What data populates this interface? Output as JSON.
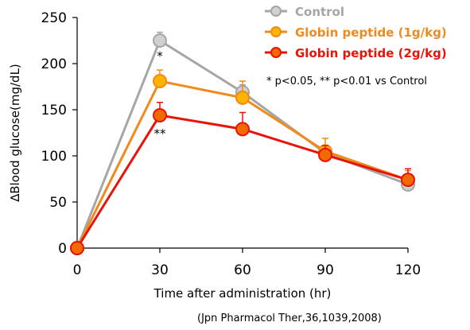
{
  "chart_data": {
    "type": "line",
    "xlabel": "Time after administration (hr)",
    "ylabel": "∆Blood glucose(mg/dL)",
    "x": [
      0,
      30,
      60,
      90,
      120
    ],
    "xticks": [
      "0",
      "30",
      "60",
      "90",
      "120"
    ],
    "yticks": [
      "0",
      "50",
      "100",
      "150",
      "200",
      "250"
    ],
    "xlim": [
      0,
      120
    ],
    "ylim": [
      0,
      250
    ],
    "grid": false,
    "legend_position": "top-right",
    "series": [
      {
        "name": "Control",
        "color": "#a6a6a6",
        "fill": "#d0d0d0",
        "values": [
          0,
          225,
          169,
          103,
          69
        ],
        "error": [
          0,
          9,
          8,
          6,
          4
        ]
      },
      {
        "name": "Globin peptide (1g/kg)",
        "color": "#f08a1c",
        "fill": "#ffb400",
        "values": [
          0,
          181,
          163,
          105,
          74
        ],
        "error": [
          0,
          12,
          18,
          14,
          10
        ]
      },
      {
        "name": "Globin peptide (2g/kg)",
        "color": "#e8140a",
        "fill": "#f06a00",
        "values": [
          0,
          144,
          129,
          101,
          74
        ],
        "error": [
          0,
          14,
          18,
          10,
          12
        ]
      }
    ],
    "annotations": [
      {
        "text": "*",
        "x": 30,
        "y": 204
      },
      {
        "text": "**",
        "x": 30,
        "y": 120
      }
    ],
    "significance_note": "* p<0.05, ** p<0.01 vs Control",
    "source": "(Jpn Pharmacol Ther,36,1039,2008)"
  }
}
